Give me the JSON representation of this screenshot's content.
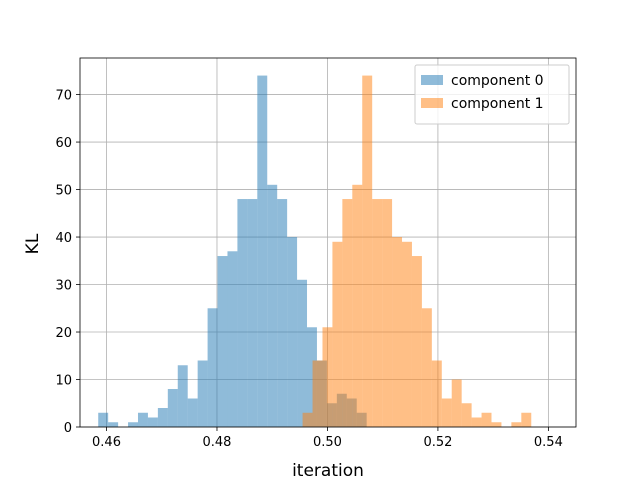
{
  "chart_data": {
    "type": "bar",
    "subtype": "histogram",
    "xlabel": "iteration",
    "ylabel": "KL",
    "xlim": [
      0.4552,
      0.545
    ],
    "ylim": [
      0,
      77.7
    ],
    "xticks": [
      0.46,
      0.48,
      0.5,
      0.52,
      0.54
    ],
    "xtick_labels": [
      "0.46",
      "0.48",
      "0.50",
      "0.52",
      "0.54"
    ],
    "yticks": [
      0,
      10,
      20,
      30,
      40,
      50,
      60,
      70
    ],
    "ytick_labels": [
      "0",
      "10",
      "20",
      "30",
      "40",
      "50",
      "60",
      "70"
    ],
    "grid": true,
    "legend_position": "top-right",
    "series": [
      {
        "name": "component 0",
        "color": "#1f77b4",
        "alpha": 0.5,
        "bin_start": 0.4585,
        "bin_width": 0.0018,
        "counts": [
          3,
          1,
          0,
          1,
          3,
          2,
          4,
          8,
          13,
          6,
          14,
          25,
          36,
          37,
          48,
          48,
          74,
          51,
          48,
          40,
          31,
          21,
          14,
          5,
          7,
          6,
          3
        ]
      },
      {
        "name": "component 1",
        "color": "#ff7f0e",
        "alpha": 0.5,
        "bin_start": 0.4955,
        "bin_width": 0.0018,
        "counts": [
          3,
          14,
          21,
          39,
          48,
          51,
          74,
          48,
          48,
          40,
          39,
          36,
          25,
          14,
          6,
          10,
          5,
          2,
          3,
          1,
          0,
          1,
          3
        ]
      }
    ]
  }
}
